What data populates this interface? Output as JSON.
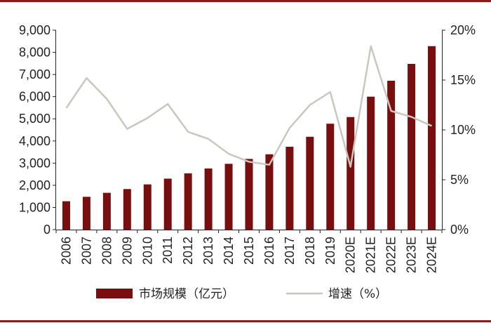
{
  "chart_data": {
    "type": "bar",
    "categories": [
      "2006",
      "2007",
      "2008",
      "2009",
      "2010",
      "2011",
      "2012",
      "2013",
      "2014",
      "2015",
      "2016",
      "2017",
      "2018",
      "2019",
      "2020E",
      "2021E",
      "2022E",
      "2023E",
      "2024E"
    ],
    "series": [
      {
        "name": "市场规模（亿元）",
        "type": "bar",
        "axis": "left",
        "color": "#7a0d0d",
        "values": [
          1280,
          1480,
          1660,
          1830,
          2040,
          2300,
          2540,
          2760,
          2970,
          3190,
          3400,
          3740,
          4190,
          4780,
          5080,
          6000,
          6720,
          7480,
          8280
        ]
      },
      {
        "name": "增速（%）",
        "type": "line",
        "axis": "right",
        "color": "#c8c8c0",
        "values": [
          12.2,
          15.2,
          13.1,
          10.1,
          11.2,
          12.6,
          9.8,
          9.1,
          7.6,
          6.8,
          6.5,
          10.2,
          12.5,
          13.8,
          6.3,
          18.4,
          11.9,
          11.3,
          10.4
        ]
      }
    ],
    "y_left": {
      "ticks": [
        "0",
        "1,000",
        "2,000",
        "3,000",
        "4,000",
        "5,000",
        "6,000",
        "7,000",
        "8,000",
        "9,000"
      ],
      "ylim": [
        0,
        9000
      ]
    },
    "y_right": {
      "ticks": [
        "0%",
        "5%",
        "10%",
        "15%",
        "20%"
      ],
      "ylim": [
        0,
        20
      ]
    },
    "legend_position": "bottom",
    "grid": false,
    "frame_color": "#8b1a1a"
  }
}
